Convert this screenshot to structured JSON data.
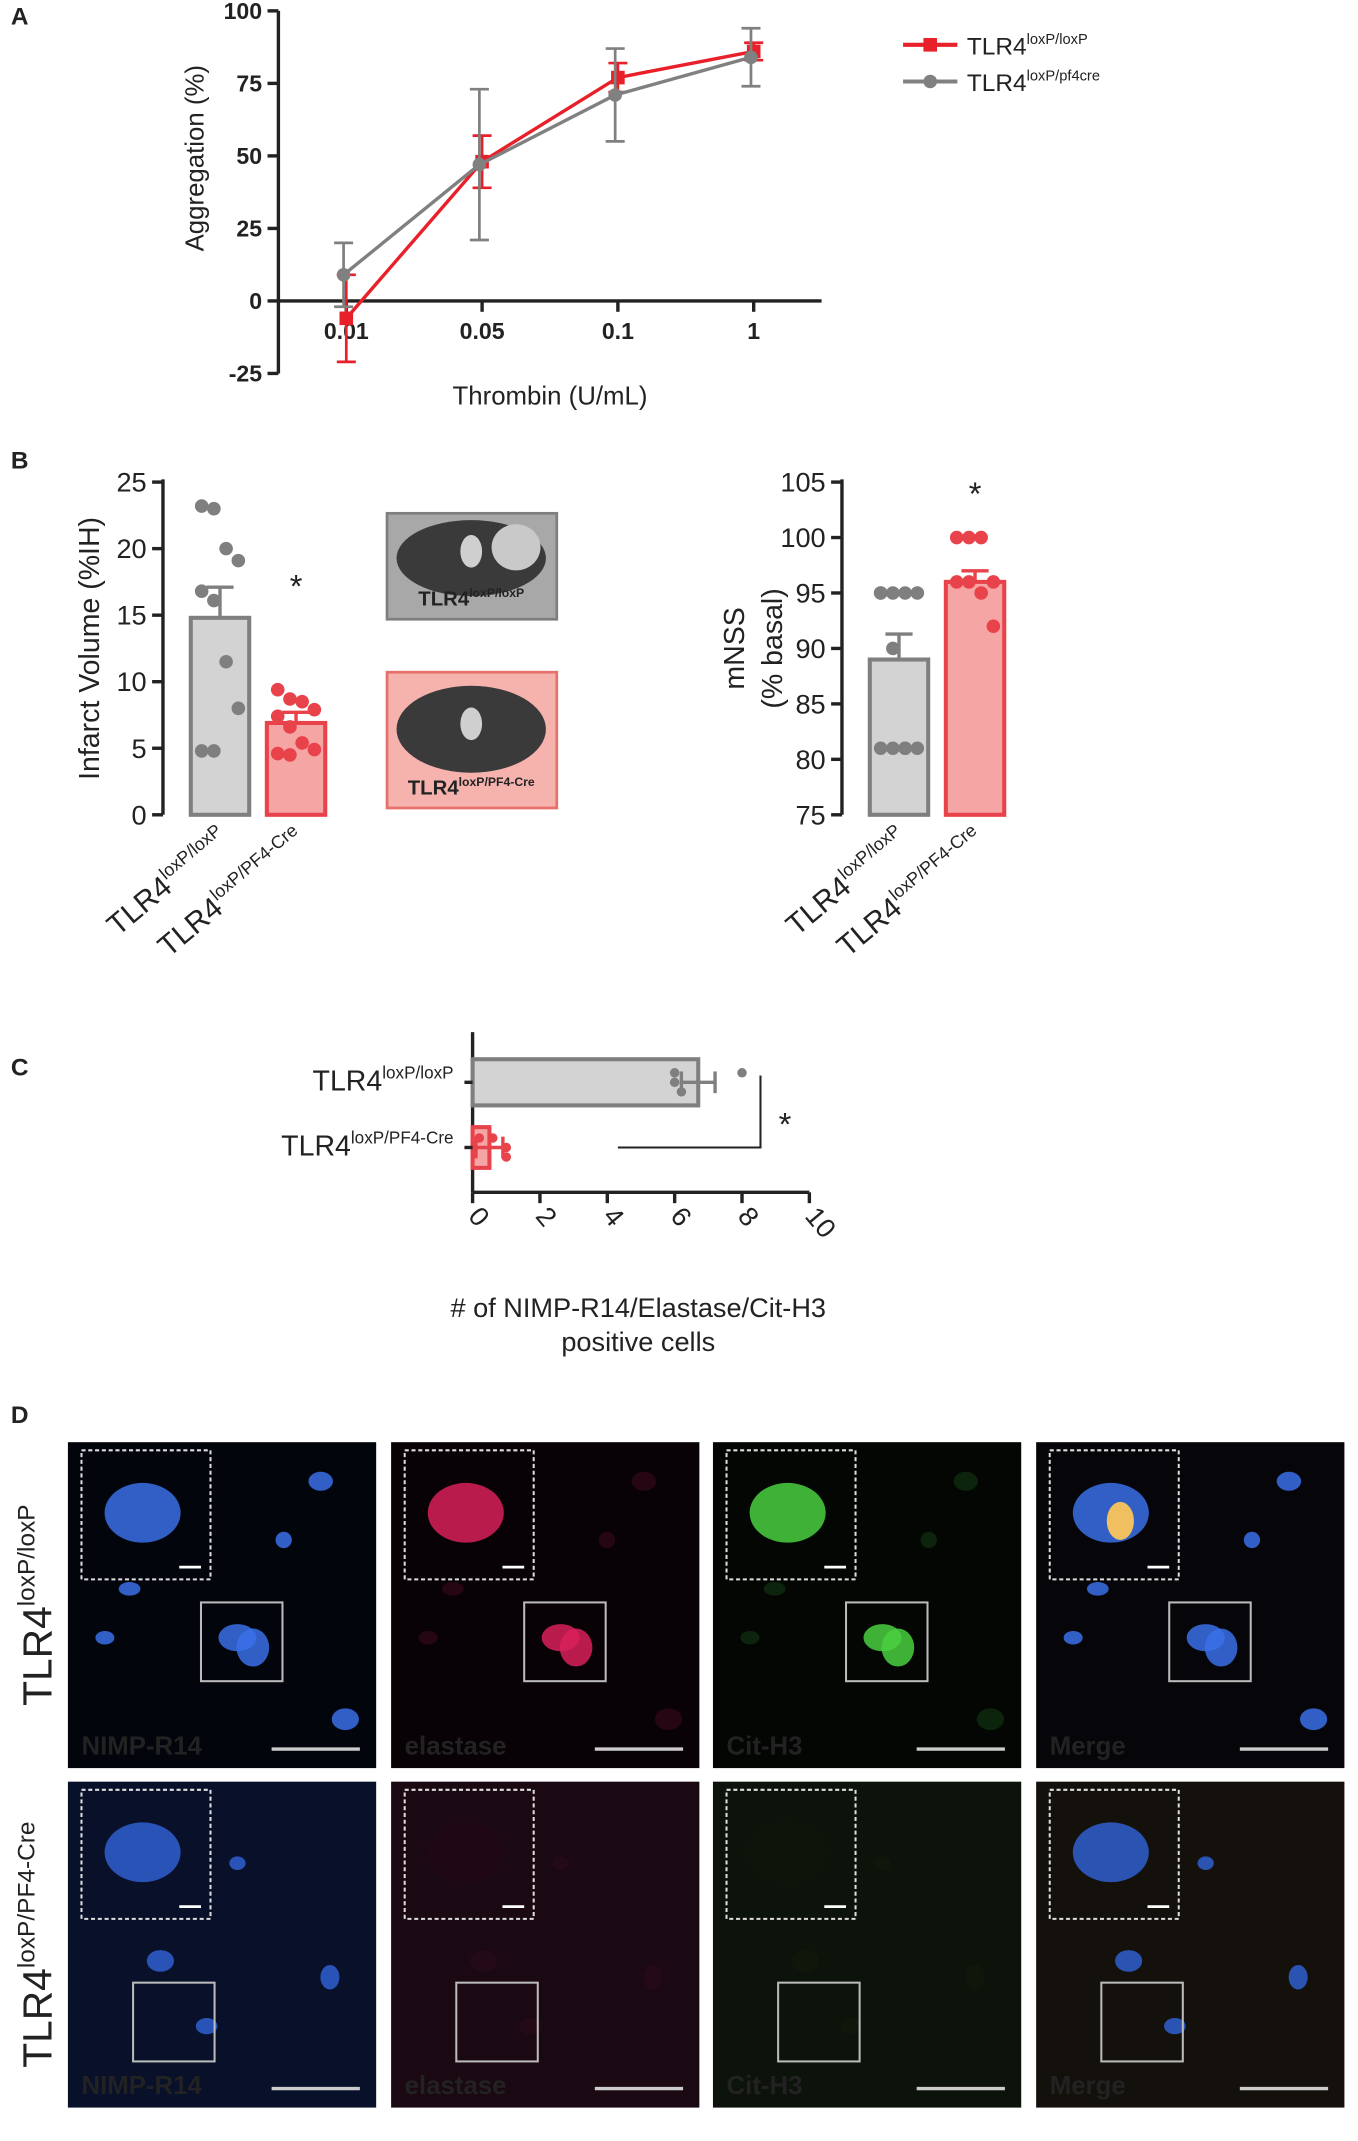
{
  "chart_data": [
    {
      "type": "line",
      "panel": "A",
      "x_label": "Thrombin (U/mL)",
      "y_label": "Aggregation (%)",
      "categories": [
        "0.01",
        "0.05",
        "0.1",
        "1"
      ],
      "ylim": [
        -25,
        100
      ],
      "yticks": [
        -25,
        0,
        25,
        50,
        75,
        100
      ],
      "series": [
        {
          "name": {
            "text": "TLR4",
            "sup": "loxP/loxP"
          },
          "color": "#e8202a",
          "marker": "square",
          "values": [
            -6,
            48,
            77,
            86
          ],
          "errors": [
            15,
            9,
            5,
            3
          ]
        },
        {
          "name": {
            "text": "TLR4",
            "sup": "loxP/pf4cre"
          },
          "color": "#808080",
          "marker": "circle",
          "values": [
            9,
            47,
            71,
            84
          ],
          "errors": [
            11,
            26,
            16,
            10
          ]
        }
      ]
    },
    {
      "type": "bar_scatter",
      "panel": "B",
      "y_label": "Infarct Volume (%IH)",
      "categories": [
        {
          "text": "TLR4",
          "sup": "loxP/loxP"
        },
        {
          "text": "TLR4",
          "sup": "loxP/PF4-Cre"
        }
      ],
      "values": [
        14.8,
        6.9
      ],
      "errors": [
        2.3,
        0.8
      ],
      "points": [
        [
          23.2,
          23.0,
          20.0,
          19.1,
          16.8,
          16.1,
          11.5,
          8.0,
          4.8,
          4.8
        ],
        [
          9.4,
          8.7,
          8.5,
          7.9,
          7.4,
          6.6,
          5.4,
          4.9,
          4.6,
          4.5
        ]
      ],
      "colors": [
        "#7f7f7f",
        "#e8424a"
      ],
      "fills": [
        "#d3d3d3",
        "#f6a5a5"
      ],
      "ylim": [
        0,
        25
      ],
      "yticks": [
        0,
        5,
        10,
        15,
        20,
        25
      ],
      "annotation": "*",
      "inset_labels": [
        {
          "text": "TLR4",
          "sup": "loxP/loxP"
        },
        {
          "text": "TLR4",
          "sup": "loxP/PF4-Cre"
        }
      ]
    },
    {
      "type": "bar_scatter",
      "y_label": [
        "mNSS",
        "(% basal)"
      ],
      "categories": [
        {
          "text": "TLR4",
          "sup": "loxP/loxP"
        },
        {
          "text": "TLR4",
          "sup": "loxP/PF4-Cre"
        }
      ],
      "values": [
        89,
        96
      ],
      "errors": [
        2.3,
        1
      ],
      "points": [
        [
          95,
          95,
          95,
          95,
          95,
          90,
          81,
          81,
          81,
          81,
          81
        ],
        [
          100,
          100,
          100,
          96,
          96,
          96,
          95,
          92
        ]
      ],
      "colors": [
        "#7f7f7f",
        "#e8424a"
      ],
      "fills": [
        "#d3d3d3",
        "#f6a5a5"
      ],
      "ylim": [
        75,
        105
      ],
      "yticks": [
        75,
        80,
        85,
        90,
        95,
        100,
        105
      ],
      "annotation": "*"
    },
    {
      "type": "hbar_scatter",
      "panel": "C",
      "x_label": [
        "# of NIMP-R14/Elastase/Cit-H3",
        "positive cells"
      ],
      "categories": [
        {
          "text": "TLR4",
          "sup": "loxP/loxP"
        },
        {
          "text": "TLR4",
          "sup": "loxP/PF4-Cre"
        }
      ],
      "values": [
        6.7,
        0.5
      ],
      "errors": [
        0.5,
        0.4
      ],
      "points": [
        [
          6.0,
          6.0,
          6.2,
          8.0
        ],
        [
          0.2,
          1.0,
          1.0,
          0.6
        ]
      ],
      "colors": [
        "#7f7f7f",
        "#e8424a"
      ],
      "fills": [
        "#d3d3d3",
        "#f6a5a5"
      ],
      "xlim": [
        0,
        10
      ],
      "xticks": [
        0,
        2,
        4,
        6,
        8,
        10
      ],
      "annotation": "*"
    }
  ],
  "micrographs": {
    "panel": "D",
    "rows": [
      {
        "label": {
          "text": "TLR4",
          "sup": "loxP/loxP"
        },
        "channels": [
          "NIMP-R14",
          "elastase",
          "Cit-H3",
          "Merge"
        ]
      },
      {
        "label": {
          "text": "TLR4",
          "sup": "loxP/PF4-Cre"
        },
        "channels": [
          "NIMP-R14",
          "elastase",
          "Cit-H3",
          "Merge"
        ]
      }
    ]
  }
}
